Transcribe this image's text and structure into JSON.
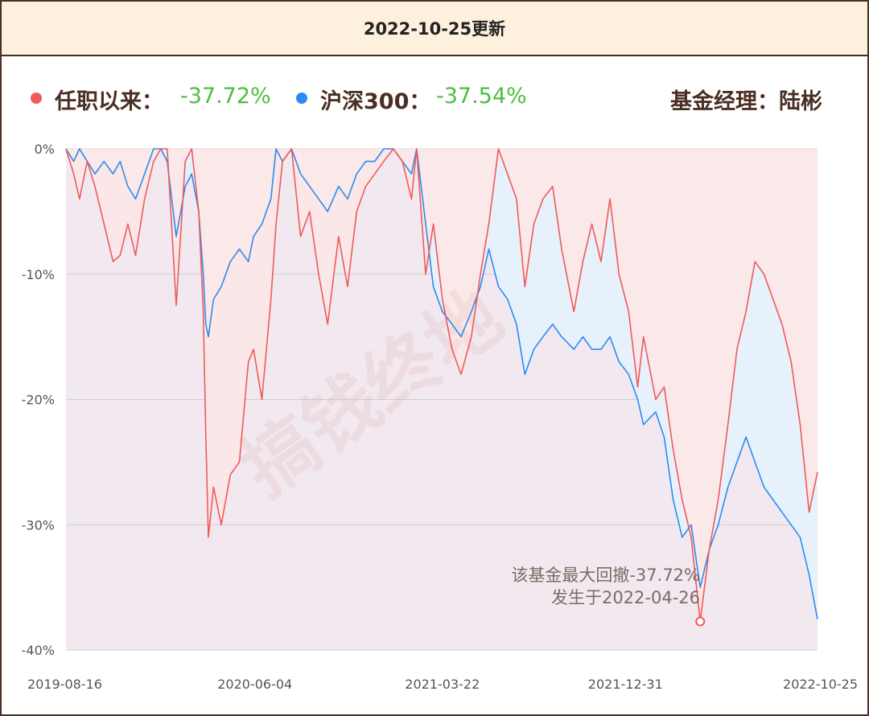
{
  "header": {
    "title": "2022-10-25更新"
  },
  "legend": {
    "fund_label": "任职以来：",
    "fund_value": "-37.72%",
    "index_label": "沪深300：",
    "index_value": "-37.54%",
    "manager": "基金经理：陆彬"
  },
  "colors": {
    "fund": "#f05a5a",
    "index": "#2b8cf0",
    "value_text": "#4bbf3f",
    "header_bg": "#fdf0dc",
    "border": "#4a2f22"
  },
  "watermark": "搞钱终地",
  "annotation": {
    "line1": "该基金最大回撤-37.72%",
    "line2": "发生于2022-04-26",
    "date": "2022-04-26",
    "value": -37.72
  },
  "chart_data": {
    "type": "area",
    "title": "",
    "xlabel": "",
    "ylabel": "",
    "ylim": [
      -40,
      0
    ],
    "yticks": [
      0,
      -10,
      -20,
      -30,
      -40
    ],
    "ytick_labels": [
      "0%",
      "-10%",
      "-20%",
      "-30%",
      "-40%"
    ],
    "xticks": [
      "2019-08-16",
      "2020-06-04",
      "2021-03-22",
      "2021-12-31",
      "2022-10-25"
    ],
    "grid": true,
    "legend_position": "top",
    "series": [
      {
        "name": "任职以来",
        "color": "#f05a5a",
        "points": [
          [
            "2019-08-16",
            0
          ],
          [
            "2019-08-28",
            -2
          ],
          [
            "2019-09-06",
            -4
          ],
          [
            "2019-09-18",
            -1
          ],
          [
            "2019-09-30",
            -3
          ],
          [
            "2019-10-14",
            -6
          ],
          [
            "2019-10-28",
            -9
          ],
          [
            "2019-11-08",
            -8.5
          ],
          [
            "2019-11-20",
            -6
          ],
          [
            "2019-12-02",
            -8.5
          ],
          [
            "2019-12-16",
            -4
          ],
          [
            "2019-12-30",
            -1
          ],
          [
            "2020-01-10",
            0
          ],
          [
            "2020-01-20",
            0
          ],
          [
            "2020-02-03",
            -12.5
          ],
          [
            "2020-02-17",
            -1
          ],
          [
            "2020-02-27",
            0
          ],
          [
            "2020-03-09",
            -5
          ],
          [
            "2020-03-16",
            -13
          ],
          [
            "2020-03-20",
            -23
          ],
          [
            "2020-03-24",
            -31
          ],
          [
            "2020-04-01",
            -27
          ],
          [
            "2020-04-13",
            -30
          ],
          [
            "2020-04-27",
            -26
          ],
          [
            "2020-05-11",
            -25
          ],
          [
            "2020-05-25",
            -17
          ],
          [
            "2020-06-02",
            -16
          ],
          [
            "2020-06-15",
            -20
          ],
          [
            "2020-06-29",
            -12
          ],
          [
            "2020-07-07",
            -6
          ],
          [
            "2020-07-17",
            -1
          ],
          [
            "2020-07-31",
            0
          ],
          [
            "2020-08-14",
            -7
          ],
          [
            "2020-08-28",
            -5
          ],
          [
            "2020-09-11",
            -10
          ],
          [
            "2020-09-25",
            -14
          ],
          [
            "2020-10-12",
            -7
          ],
          [
            "2020-10-26",
            -11
          ],
          [
            "2020-11-09",
            -5
          ],
          [
            "2020-11-23",
            -3
          ],
          [
            "2020-12-07",
            -2
          ],
          [
            "2020-12-21",
            -1
          ],
          [
            "2021-01-05",
            0
          ],
          [
            "2021-01-19",
            -1
          ],
          [
            "2021-02-02",
            -4
          ],
          [
            "2021-02-10",
            0
          ],
          [
            "2021-02-24",
            -10
          ],
          [
            "2021-03-08",
            -6
          ],
          [
            "2021-03-22",
            -12
          ],
          [
            "2021-04-06",
            -16
          ],
          [
            "2021-04-20",
            -18
          ],
          [
            "2021-05-06",
            -15
          ],
          [
            "2021-05-20",
            -10
          ],
          [
            "2021-06-02",
            -6
          ],
          [
            "2021-06-17",
            0
          ],
          [
            "2021-07-01",
            -2
          ],
          [
            "2021-07-15",
            -4
          ],
          [
            "2021-07-28",
            -11
          ],
          [
            "2021-08-11",
            -6
          ],
          [
            "2021-08-25",
            -4
          ],
          [
            "2021-09-09",
            -3
          ],
          [
            "2021-09-23",
            -8
          ],
          [
            "2021-10-12",
            -13
          ],
          [
            "2021-10-26",
            -9
          ],
          [
            "2021-11-09",
            -6
          ],
          [
            "2021-11-23",
            -9
          ],
          [
            "2021-12-07",
            -4
          ],
          [
            "2021-12-21",
            -10
          ],
          [
            "2022-01-05",
            -13
          ],
          [
            "2022-01-19",
            -19
          ],
          [
            "2022-01-28",
            -15
          ],
          [
            "2022-02-16",
            -20
          ],
          [
            "2022-03-01",
            -19
          ],
          [
            "2022-03-15",
            -24
          ],
          [
            "2022-03-29",
            -28
          ],
          [
            "2022-04-12",
            -31
          ],
          [
            "2022-04-26",
            -37.72
          ],
          [
            "2022-05-10",
            -32
          ],
          [
            "2022-05-24",
            -28
          ],
          [
            "2022-06-08",
            -22
          ],
          [
            "2022-06-22",
            -16
          ],
          [
            "2022-07-06",
            -13
          ],
          [
            "2022-07-20",
            -9
          ],
          [
            "2022-08-03",
            -10
          ],
          [
            "2022-08-17",
            -12
          ],
          [
            "2022-08-31",
            -14
          ],
          [
            "2022-09-14",
            -17
          ],
          [
            "2022-09-28",
            -22
          ],
          [
            "2022-10-12",
            -29
          ],
          [
            "2022-10-25",
            -25.8
          ]
        ]
      },
      {
        "name": "沪深300",
        "color": "#2b8cf0",
        "points": [
          [
            "2019-08-16",
            0
          ],
          [
            "2019-08-28",
            -1
          ],
          [
            "2019-09-06",
            0
          ],
          [
            "2019-09-18",
            -1
          ],
          [
            "2019-09-30",
            -2
          ],
          [
            "2019-10-14",
            -1
          ],
          [
            "2019-10-28",
            -2
          ],
          [
            "2019-11-08",
            -1
          ],
          [
            "2019-11-20",
            -3
          ],
          [
            "2019-12-02",
            -4
          ],
          [
            "2019-12-16",
            -2
          ],
          [
            "2019-12-30",
            0
          ],
          [
            "2020-01-10",
            0
          ],
          [
            "2020-01-20",
            -1
          ],
          [
            "2020-02-03",
            -7
          ],
          [
            "2020-02-17",
            -3
          ],
          [
            "2020-02-27",
            -2
          ],
          [
            "2020-03-09",
            -5
          ],
          [
            "2020-03-16",
            -10
          ],
          [
            "2020-03-20",
            -14
          ],
          [
            "2020-03-24",
            -15
          ],
          [
            "2020-04-01",
            -12
          ],
          [
            "2020-04-13",
            -11
          ],
          [
            "2020-04-27",
            -9
          ],
          [
            "2020-05-11",
            -8
          ],
          [
            "2020-05-25",
            -9
          ],
          [
            "2020-06-02",
            -7
          ],
          [
            "2020-06-15",
            -6
          ],
          [
            "2020-06-29",
            -4
          ],
          [
            "2020-07-07",
            0
          ],
          [
            "2020-07-17",
            -1
          ],
          [
            "2020-07-31",
            0
          ],
          [
            "2020-08-14",
            -2
          ],
          [
            "2020-08-28",
            -3
          ],
          [
            "2020-09-11",
            -4
          ],
          [
            "2020-09-25",
            -5
          ],
          [
            "2020-10-12",
            -3
          ],
          [
            "2020-10-26",
            -4
          ],
          [
            "2020-11-09",
            -2
          ],
          [
            "2020-11-23",
            -1
          ],
          [
            "2020-12-07",
            -1
          ],
          [
            "2020-12-21",
            0
          ],
          [
            "2021-01-05",
            0
          ],
          [
            "2021-01-19",
            -1
          ],
          [
            "2021-02-02",
            -2
          ],
          [
            "2021-02-10",
            0
          ],
          [
            "2021-02-24",
            -6
          ],
          [
            "2021-03-08",
            -11
          ],
          [
            "2021-03-22",
            -13
          ],
          [
            "2021-04-06",
            -14
          ],
          [
            "2021-04-20",
            -15
          ],
          [
            "2021-05-06",
            -13
          ],
          [
            "2021-05-20",
            -11
          ],
          [
            "2021-06-02",
            -8
          ],
          [
            "2021-06-17",
            -11
          ],
          [
            "2021-07-01",
            -12
          ],
          [
            "2021-07-15",
            -14
          ],
          [
            "2021-07-28",
            -18
          ],
          [
            "2021-08-11",
            -16
          ],
          [
            "2021-08-25",
            -15
          ],
          [
            "2021-09-09",
            -14
          ],
          [
            "2021-09-23",
            -15
          ],
          [
            "2021-10-12",
            -16
          ],
          [
            "2021-10-26",
            -15
          ],
          [
            "2021-11-09",
            -16
          ],
          [
            "2021-11-23",
            -16
          ],
          [
            "2021-12-07",
            -15
          ],
          [
            "2021-12-21",
            -17
          ],
          [
            "2022-01-05",
            -18
          ],
          [
            "2022-01-19",
            -20
          ],
          [
            "2022-01-28",
            -22
          ],
          [
            "2022-02-16",
            -21
          ],
          [
            "2022-03-01",
            -23
          ],
          [
            "2022-03-15",
            -28
          ],
          [
            "2022-03-29",
            -31
          ],
          [
            "2022-04-12",
            -30
          ],
          [
            "2022-04-26",
            -35
          ],
          [
            "2022-05-10",
            -32
          ],
          [
            "2022-05-24",
            -30
          ],
          [
            "2022-06-08",
            -27
          ],
          [
            "2022-06-22",
            -25
          ],
          [
            "2022-07-06",
            -23
          ],
          [
            "2022-07-20",
            -25
          ],
          [
            "2022-08-03",
            -27
          ],
          [
            "2022-08-17",
            -28
          ],
          [
            "2022-08-31",
            -29
          ],
          [
            "2022-09-14",
            -30
          ],
          [
            "2022-09-28",
            -31
          ],
          [
            "2022-10-12",
            -34
          ],
          [
            "2022-10-25",
            -37.54
          ]
        ]
      }
    ]
  }
}
